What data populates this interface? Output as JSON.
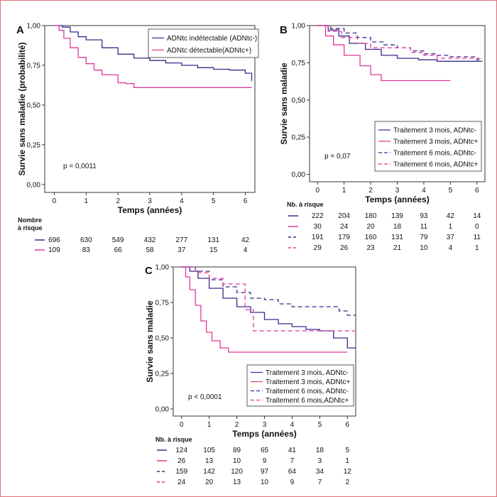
{
  "chart_data": [
    {
      "panel": "A",
      "type": "line",
      "ylabel": "Survie sans maladie (probabilité)",
      "xlabel": "Temps (années)",
      "xlim": [
        -0.3,
        6.3
      ],
      "ylim": [
        -0.05,
        1.0
      ],
      "xticks": [
        0,
        1,
        2,
        3,
        4,
        5,
        6
      ],
      "yticks": [
        "0,00",
        "0,25",
        "0,50",
        "0,75",
        "1,00"
      ],
      "pvalue": "p = 0,0011",
      "risk_title": "Nombre\nà risque",
      "series": [
        {
          "name": "ADNtc indétectable (ADNtc-)",
          "color": "#3b2a8a",
          "dash": false,
          "x": [
            0,
            0.25,
            0.5,
            0.75,
            1,
            1.5,
            2,
            2.5,
            3,
            3.5,
            4,
            4.5,
            5,
            5.5,
            6,
            6.2
          ],
          "y": [
            1.0,
            0.99,
            0.96,
            0.93,
            0.91,
            0.86,
            0.82,
            0.795,
            0.78,
            0.765,
            0.75,
            0.735,
            0.725,
            0.72,
            0.7,
            0.65
          ],
          "risk": [
            "696",
            "630",
            "549",
            "432",
            "277",
            "131",
            "42"
          ]
        },
        {
          "name": "ADNtc détectable(ADNtc+)",
          "color": "#e0389a",
          "dash": false,
          "x": [
            0,
            0.15,
            0.3,
            0.5,
            0.75,
            1,
            1.25,
            1.5,
            2,
            2.25,
            2.5,
            3,
            4,
            5,
            6.2
          ],
          "y": [
            1.0,
            0.97,
            0.92,
            0.86,
            0.8,
            0.76,
            0.72,
            0.69,
            0.64,
            0.635,
            0.61,
            0.61,
            0.61,
            0.61,
            0.61
          ],
          "risk": [
            "109",
            "83",
            "66",
            "58",
            "37",
            "15",
            "4"
          ]
        }
      ]
    },
    {
      "panel": "B",
      "type": "line",
      "ylabel": "Survie sans maladie",
      "xlabel": "Temps (années)",
      "xlim": [
        -0.3,
        6.3
      ],
      "ylim": [
        -0.05,
        1.0
      ],
      "xticks": [
        0,
        1,
        2,
        3,
        4,
        5,
        6
      ],
      "yticks": [
        "0,00",
        "0,25",
        "0,50",
        "0,75",
        "1,00"
      ],
      "pvalue": "p = 0,07",
      "risk_title": "Nb. à risque",
      "series": [
        {
          "name": "Traitement 3 mois, ADNtc-",
          "color": "#3b2a8a",
          "dash": false,
          "x": [
            0,
            0.4,
            0.8,
            1.2,
            1.8,
            2.4,
            3,
            3.8,
            4.5,
            5,
            6.2
          ],
          "y": [
            1.0,
            0.97,
            0.93,
            0.88,
            0.84,
            0.8,
            0.78,
            0.77,
            0.76,
            0.76,
            0.76
          ],
          "risk": [
            "222",
            "204",
            "180",
            "139",
            "93",
            "42",
            "14"
          ]
        },
        {
          "name": "Traitement 3 mois, ADNtc+",
          "color": "#e0389a",
          "dash": false,
          "x": [
            0,
            0.3,
            0.6,
            1,
            1.6,
            2,
            2.4,
            3,
            4,
            5
          ],
          "y": [
            1.0,
            0.93,
            0.87,
            0.8,
            0.73,
            0.67,
            0.63,
            0.63,
            0.63,
            0.63
          ],
          "risk": [
            "30",
            "24",
            "20",
            "18",
            "11",
            "1",
            "0"
          ]
        },
        {
          "name": "Traitement 6 mois, ADNtc-",
          "color": "#3b2a8a",
          "dash": true,
          "x": [
            0,
            0.5,
            1,
            1.5,
            2,
            2.5,
            3,
            3.5,
            4,
            4.5,
            5,
            5.5,
            6,
            6.2
          ],
          "y": [
            1.0,
            0.98,
            0.95,
            0.92,
            0.89,
            0.87,
            0.85,
            0.83,
            0.81,
            0.8,
            0.79,
            0.79,
            0.77,
            0.77
          ],
          "risk": [
            "191",
            "179",
            "160",
            "131",
            "79",
            "37",
            "11"
          ]
        },
        {
          "name": "Traitement 6 mois, ADNtc+",
          "color": "#e0389a",
          "dash": true,
          "x": [
            0,
            0.4,
            0.9,
            1.5,
            2,
            2.5,
            3,
            3.5,
            4,
            4.5,
            5,
            6.2
          ],
          "y": [
            1.0,
            0.96,
            0.92,
            0.88,
            0.85,
            0.85,
            0.85,
            0.82,
            0.8,
            0.78,
            0.78,
            0.78
          ],
          "risk": [
            "29",
            "26",
            "23",
            "21",
            "10",
            "4",
            "1"
          ]
        }
      ]
    },
    {
      "panel": "C",
      "type": "line",
      "ylabel": "Survie sans maladie",
      "xlabel": "Temps (années)",
      "xlim": [
        -0.3,
        6.3
      ],
      "ylim": [
        -0.05,
        1.0
      ],
      "xticks": [
        0,
        1,
        2,
        3,
        4,
        5,
        6
      ],
      "yticks": [
        "0,00",
        "0,25",
        "0,50",
        "0,75",
        "1,00"
      ],
      "pvalue": "p < 0,0001",
      "risk_title": "Nb. à risque",
      "series": [
        {
          "name": "Traitement 3 mois, ADNtc-",
          "color": "#3b2a8a",
          "dash": false,
          "x": [
            0,
            0.3,
            0.6,
            1,
            1.5,
            2,
            2.5,
            3,
            3.5,
            4,
            4.5,
            5,
            5.5,
            6,
            6.3
          ],
          "y": [
            1.0,
            0.97,
            0.92,
            0.85,
            0.78,
            0.72,
            0.68,
            0.63,
            0.6,
            0.58,
            0.56,
            0.55,
            0.5,
            0.43,
            0.43
          ],
          "risk": [
            "124",
            "105",
            "89",
            "65",
            "41",
            "18",
            "5"
          ]
        },
        {
          "name": "Traitement 3 mois, ADNtc+",
          "color": "#e0389a",
          "dash": false,
          "x": [
            0,
            0.15,
            0.3,
            0.5,
            0.7,
            0.9,
            1.1,
            1.4,
            1.7,
            2,
            3,
            4,
            5,
            6
          ],
          "y": [
            1.0,
            0.93,
            0.84,
            0.73,
            0.62,
            0.54,
            0.48,
            0.43,
            0.4,
            0.4,
            0.4,
            0.4,
            0.4,
            0.4
          ],
          "risk": [
            "26",
            "13",
            "10",
            "9",
            "7",
            "3",
            "1"
          ]
        },
        {
          "name": "Traitement 6 mois, ADNtc-",
          "color": "#3b2a8a",
          "dash": true,
          "x": [
            0,
            0.5,
            1,
            1.5,
            2,
            2.5,
            3,
            3.5,
            4,
            4.5,
            5,
            5.5,
            5.7,
            6,
            6.3
          ],
          "y": [
            1.0,
            0.97,
            0.91,
            0.86,
            0.82,
            0.78,
            0.77,
            0.74,
            0.72,
            0.72,
            0.72,
            0.72,
            0.69,
            0.66,
            0.66
          ],
          "risk": [
            "159",
            "142",
            "120",
            "97",
            "64",
            "34",
            "12"
          ]
        },
        {
          "name": "Traitement 6 mois,ADNtc+",
          "color": "#e0389a",
          "dash": true,
          "x": [
            0,
            0.5,
            1,
            1.5,
            2,
            2.3,
            2.6,
            3,
            4,
            5,
            6.3
          ],
          "y": [
            1.0,
            0.96,
            0.92,
            0.88,
            0.88,
            0.7,
            0.55,
            0.55,
            0.55,
            0.55,
            0.55
          ],
          "risk": [
            "24",
            "20",
            "13",
            "10",
            "9",
            "7",
            "2"
          ]
        }
      ]
    }
  ]
}
